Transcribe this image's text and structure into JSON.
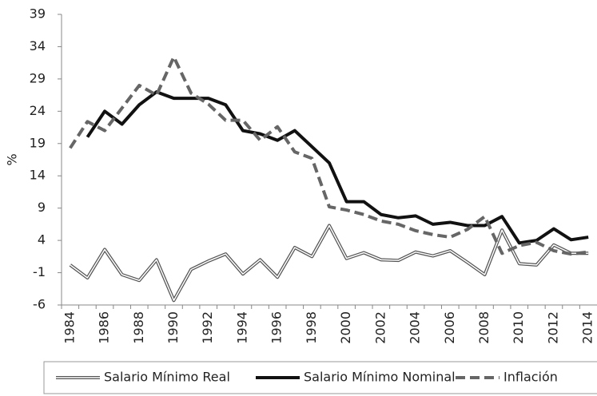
{
  "chart_data": {
    "type": "line",
    "y_label": "%",
    "categories": [
      "1984",
      null,
      "1986",
      null,
      "1988",
      null,
      "1990",
      null,
      "1992",
      null,
      "1994",
      null,
      "1996",
      null,
      "1998",
      null,
      "2000",
      null,
      "2002",
      null,
      "2004",
      null,
      "2006",
      null,
      "2008",
      null,
      "2010",
      null,
      "2012",
      null,
      "2014"
    ],
    "ylim": [
      -6,
      39
    ],
    "yticks": [
      -6,
      -1,
      4,
      9,
      14,
      19,
      24,
      29,
      34,
      39
    ],
    "series": [
      {
        "name": "Salario Mínimo Real",
        "color": "#555555",
        "style": "double",
        "values": [
          0.2,
          -1.8,
          2.6,
          -1.3,
          -2.2,
          1,
          -5.3,
          -0.5,
          0.8,
          1.9,
          -1.2,
          1,
          -1.7,
          2.9,
          1.5,
          6.3,
          1.2,
          2.1,
          1,
          0.9,
          2.2,
          1.6,
          2.4,
          0.6,
          -1.3,
          5.6,
          0.4,
          0.2,
          3.3,
          2,
          2
        ]
      },
      {
        "name": "Salario Mínimo Nominal",
        "color": "#111111",
        "style": "solid",
        "values": [
          null,
          20,
          24,
          22,
          25,
          27,
          26,
          26,
          26,
          25,
          21,
          20.5,
          19.5,
          21,
          18.5,
          16,
          10,
          10,
          8,
          7.5,
          7.8,
          6.5,
          6.8,
          6.3,
          6.3,
          7.7,
          3.6,
          4,
          5.8,
          4.1,
          4.5
        ]
      },
      {
        "name": "Inflación",
        "color": "#666666",
        "style": "dashed",
        "values": [
          18.3,
          22.4,
          21,
          24.5,
          28,
          26.5,
          32.4,
          26.8,
          25.1,
          22.6,
          22.6,
          19.5,
          21.6,
          17.7,
          16.7,
          9.2,
          8.7,
          8,
          7,
          6.5,
          5.5,
          4.9,
          4.5,
          5.7,
          7.7,
          2,
          3.2,
          3.7,
          2.4,
          1.9,
          2.2
        ]
      }
    ]
  }
}
